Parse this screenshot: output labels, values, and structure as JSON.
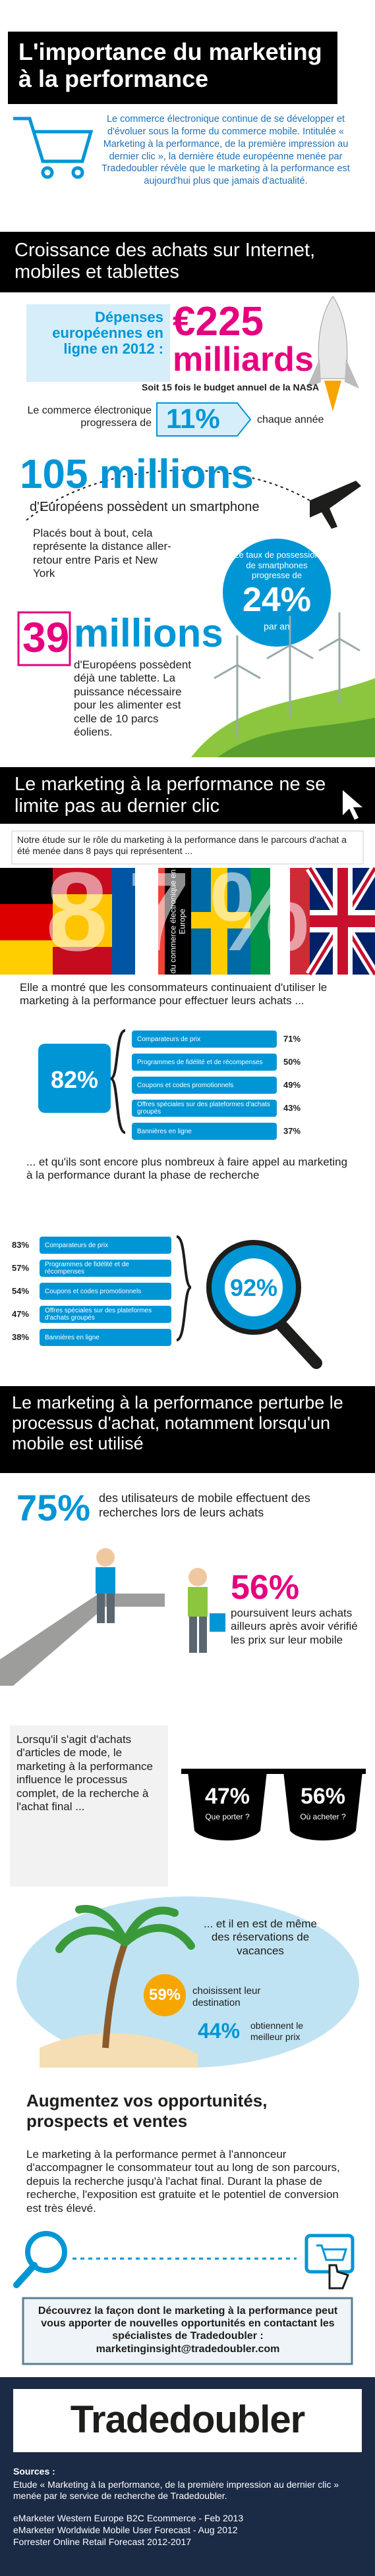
{
  "header": {
    "title": "L'importance du marketing à la performance",
    "intro": "Le commerce électronique continue de se développer et d'évoluer sous la forme du commerce mobile. Intitulée « Marketing à la performance, de la première impression au dernier clic », la dernière étude européenne menée par Tradedoubler révèle que le marketing à la performance est aujourd'hui plus que jamais d'actualité."
  },
  "growth": {
    "heading": "Croissance des achats sur Internet, mobiles et tablettes",
    "spend_label": "Dépenses européennes en ligne en 2012 :",
    "spend_value": "€225",
    "spend_unit": "milliards",
    "spend_note": "Soit 15 fois le budget annuel de la NASA",
    "growth_prefix": "Le commerce électronique progressera de",
    "growth_value": "11%",
    "growth_suffix": "chaque année",
    "smartphones_value": "105 millions",
    "smartphones_label": "d'Européens possèdent un smartphone",
    "distance_note": "Placés bout à bout, cela représente la distance aller-retour entre Paris et New York",
    "rate_label": "Le taux de possession de smartphones progresse de",
    "rate_value": "24%",
    "rate_suffix": "par an",
    "tablets_number": "39",
    "tablets_unit": "millions",
    "tablets_label": "d'Européens possèdent déjà une tablette. La puissance nécessaire pour les alimenter est celle de 10 parcs éoliens."
  },
  "beyond": {
    "heading": "Le marketing à la performance ne se limite pas au dernier clic",
    "study": "Notre étude sur le rôle du marketing à la performance dans le parcours d'achat a été menée dans 8 pays qui représentent ...",
    "share_value": "87%",
    "share_label": "du commerce électronique en Europe",
    "purchase_intro": "Elle a montré que les consommateurs continuaient d'utiliser le marketing à la performance pour effectuer leurs achats ...",
    "purchase_total": "82%",
    "purchase_items": [
      {
        "label": "Comparateurs de prix",
        "value": "71%"
      },
      {
        "label": "Programmes de fidélité et de récompenses",
        "value": "50%"
      },
      {
        "label": "Coupons et codes promotionnels",
        "value": "49%"
      },
      {
        "label": "Offres spéciales sur des plateformes d'achats groupés",
        "value": "43%"
      },
      {
        "label": "Bannières en ligne",
        "value": "37%"
      }
    ],
    "research_intro": "... et qu'ils sont encore plus nombreux à faire appel au marketing à la performance durant la phase de recherche",
    "research_total": "92%",
    "research_items": [
      {
        "label": "Comparateurs de prix",
        "value": "83%"
      },
      {
        "label": "Programmes de fidélité et de récompenses",
        "value": "57%"
      },
      {
        "label": "Coupons et codes promotionnels",
        "value": "54%"
      },
      {
        "label": "Offres spéciales sur des plateformes d'achats groupés",
        "value": "47%"
      },
      {
        "label": "Bannières en ligne",
        "value": "38%"
      }
    ]
  },
  "mobile": {
    "heading": "Le marketing à la performance perturbe le processus d'achat, notamment lorsqu'un mobile est utilisé",
    "research_value": "75%",
    "research_label": "des utilisateurs de mobile effectuent des recherches lors de leurs achats",
    "elsewhere_value": "56%",
    "elsewhere_label": "poursuivent leurs achats ailleurs après avoir vérifié les prix sur leur mobile",
    "fashion_text": "Lorsqu'il s'agit d'achats d'articles de mode, le marketing à la performance influence le processus complet, de la recherche à l'achat final ...",
    "what_value": "47%",
    "what_label": "Que porter ?",
    "where_value": "56%",
    "where_label": "Où acheter ?",
    "holiday_text": "... et il en est de même des réservations de vacances",
    "destination_value": "59%",
    "destination_label": "choisissent leur destination",
    "price_value": "44%",
    "price_label": "obtiennent le meilleur prix"
  },
  "opportunities": {
    "heading": "Augmentez vos opportunités, prospects et ventes",
    "text": "Le marketing à la performance permet à l'annonceur d'accompagner le consommateur tout au long de son parcours, depuis la recherche jusqu'à l'achat final. Durant la phase de recherche, l'exposition est gratuite et le potentiel de conversion est très élevé.",
    "contact": "Découvrez la façon dont le marketing à la performance peut vous apporter de nouvelles opportunités en contactant les spécialistes de Tradedoubler : marketinginsight@tradedoubler.com"
  },
  "footer": {
    "logo": "Tradedoubler",
    "sources_title": "Sources :",
    "sources": [
      "Etude « Marketing à la performance, de la première impression au dernier clic » menée par le service de recherche de Tradedoubler.",
      "eMarketer Western Europe B2C Ecommerce - Feb 2013",
      "eMarketer Worldwide Mobile User Forecast - Aug 2012",
      "Forrester Online Retail Forecast 2012-2017"
    ]
  }
}
